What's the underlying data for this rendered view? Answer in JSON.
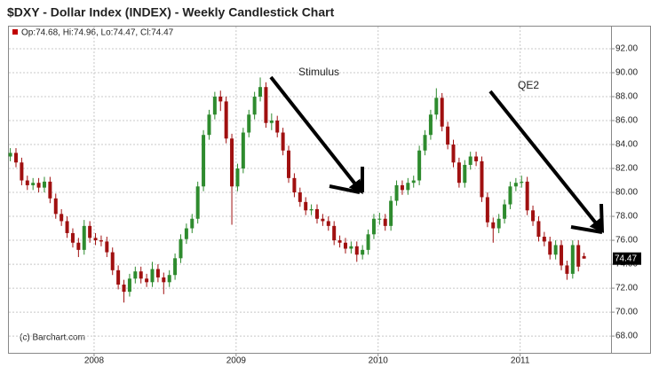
{
  "chart_data": {
    "type": "candlestick",
    "title": "$DXY - Dollar Index (INDEX) - Weekly Candlestick Chart",
    "info": "Op:74.68, Hi:74.96, Lo:74.47, Cl:74.47",
    "credit": "(c) Barchart.com",
    "annotations": [
      "Stimulus",
      "QE2"
    ],
    "up_color": "#2e8b2e",
    "down_color": "#a01010",
    "grid": true,
    "xlim": [
      2007.4,
      2011.64
    ],
    "xticks": [
      2008,
      2009,
      2010,
      2011
    ],
    "ylim": [
      66.6,
      93.85
    ],
    "yticks": [
      {
        "value": 68,
        "label": "68.00"
      },
      {
        "value": 70,
        "label": "70.00"
      },
      {
        "value": 72,
        "label": "72.00"
      },
      {
        "value": 74,
        "label": "74.00"
      },
      {
        "value": 76,
        "label": "76.00"
      },
      {
        "value": 78,
        "label": "78.00"
      },
      {
        "value": 80,
        "label": "80.00"
      },
      {
        "value": 82,
        "label": "82.00"
      },
      {
        "value": 84,
        "label": "84.00"
      },
      {
        "value": 86,
        "label": "86.00"
      },
      {
        "value": 88,
        "label": "88.00"
      },
      {
        "value": 90,
        "label": "90.00"
      },
      {
        "value": 92,
        "label": "92.00"
      }
    ],
    "x": [
      2007.41,
      2007.45,
      2007.49,
      2007.53,
      2007.57,
      2007.61,
      2007.65,
      2007.69,
      2007.73,
      2007.77,
      2007.81,
      2007.85,
      2007.89,
      2007.93,
      2007.97,
      2008.01,
      2008.05,
      2008.09,
      2008.13,
      2008.17,
      2008.21,
      2008.25,
      2008.29,
      2008.33,
      2008.37,
      2008.41,
      2008.45,
      2008.49,
      2008.53,
      2008.57,
      2008.61,
      2008.65,
      2008.69,
      2008.73,
      2008.77,
      2008.81,
      2008.85,
      2008.89,
      2008.93,
      2008.97,
      2009.01,
      2009.05,
      2009.09,
      2009.13,
      2009.17,
      2009.21,
      2009.25,
      2009.29,
      2009.33,
      2009.37,
      2009.41,
      2009.45,
      2009.49,
      2009.53,
      2009.57,
      2009.61,
      2009.65,
      2009.69,
      2009.73,
      2009.77,
      2009.81,
      2009.85,
      2009.89,
      2009.93,
      2009.97,
      2010.01,
      2010.05,
      2010.09,
      2010.13,
      2010.17,
      2010.21,
      2010.25,
      2010.29,
      2010.33,
      2010.37,
      2010.41,
      2010.45,
      2010.49,
      2010.53,
      2010.57,
      2010.61,
      2010.65,
      2010.69,
      2010.73,
      2010.77,
      2010.81,
      2010.85,
      2010.89,
      2010.93,
      2010.97,
      2011.01,
      2011.05,
      2011.09,
      2011.13,
      2011.17,
      2011.21,
      2011.25,
      2011.29,
      2011.33,
      2011.37,
      2011.41,
      2011.45
    ],
    "open": [
      83.0,
      83.3,
      82.5,
      81.0,
      80.6,
      80.8,
      80.4,
      80.9,
      79.5,
      78.2,
      77.6,
      76.6,
      75.8,
      75.2,
      77.2,
      76.2,
      76.0,
      75.9,
      75.0,
      73.5,
      72.3,
      71.7,
      72.8,
      73.4,
      72.8,
      72.5,
      73.6,
      72.9,
      72.5,
      73.1,
      74.5,
      76.1,
      77.0,
      77.8,
      80.5,
      84.8,
      86.5,
      88.0,
      87.6,
      84.5,
      80.5,
      82.0,
      85.0,
      86.5,
      88.0,
      88.8,
      85.8,
      86.0,
      85.0,
      83.5,
      81.2,
      80.0,
      79.2,
      78.5,
      78.6,
      77.8,
      77.6,
      77.2,
      76.0,
      75.8,
      75.3,
      75.5,
      74.8,
      75.2,
      76.5,
      77.8,
      77.8,
      77.2,
      79.3,
      80.6,
      80.2,
      80.8,
      81.0,
      83.5,
      84.8,
      86.5,
      87.9,
      85.5,
      84.0,
      82.5,
      80.8,
      82.3,
      83.0,
      82.6,
      79.6,
      77.5,
      77.0,
      77.8,
      79.0,
      80.5,
      80.8,
      80.9,
      78.5,
      77.6,
      76.3,
      75.9,
      74.8,
      75.6,
      73.9,
      73.2,
      75.6,
      74.68
    ],
    "high": [
      83.7,
      83.7,
      82.9,
      81.4,
      81.2,
      81.2,
      81.3,
      81.3,
      79.9,
      78.6,
      78.0,
      77.0,
      76.2,
      77.7,
      77.6,
      76.6,
      76.4,
      76.3,
      75.4,
      73.9,
      72.7,
      73.2,
      73.8,
      73.8,
      73.2,
      74.2,
      74.0,
      73.3,
      73.5,
      74.9,
      76.5,
      77.4,
      78.2,
      80.9,
      85.2,
      86.9,
      88.4,
      88.5,
      88.0,
      84.9,
      82.4,
      85.4,
      86.9,
      88.4,
      89.6,
      89.2,
      86.6,
      86.4,
      85.4,
      83.9,
      81.6,
      80.4,
      79.6,
      79.0,
      79.0,
      78.2,
      78.0,
      77.6,
      76.4,
      76.2,
      75.9,
      75.9,
      75.6,
      76.9,
      78.2,
      78.3,
      78.2,
      79.7,
      81.0,
      81.0,
      81.2,
      81.4,
      83.9,
      85.2,
      86.9,
      88.7,
      88.3,
      85.9,
      84.4,
      82.9,
      82.7,
      83.4,
      83.4,
      83.0,
      80.0,
      77.9,
      78.2,
      79.4,
      80.9,
      81.2,
      81.4,
      81.3,
      78.9,
      78.0,
      76.7,
      76.3,
      76.0,
      76.0,
      74.3,
      76.0,
      76.0,
      74.96
    ],
    "low": [
      82.6,
      82.1,
      80.6,
      80.2,
      80.2,
      80.0,
      80.0,
      79.1,
      77.8,
      77.2,
      76.2,
      75.4,
      74.6,
      74.8,
      75.8,
      75.6,
      75.5,
      74.6,
      73.1,
      71.9,
      70.8,
      71.3,
      72.4,
      72.4,
      72.1,
      72.1,
      72.5,
      71.5,
      72.1,
      72.7,
      74.1,
      75.7,
      76.6,
      77.4,
      80.1,
      84.4,
      86.1,
      86.8,
      84.1,
      77.3,
      80.1,
      81.6,
      84.6,
      86.1,
      87.6,
      85.4,
      85.2,
      84.6,
      83.1,
      80.8,
      79.6,
      78.8,
      78.1,
      78.1,
      77.4,
      77.2,
      76.8,
      75.6,
      75.4,
      74.9,
      74.9,
      74.2,
      74.4,
      74.8,
      76.1,
      77.3,
      76.8,
      76.8,
      78.9,
      79.8,
      79.8,
      80.4,
      80.6,
      83.1,
      84.4,
      86.1,
      85.1,
      83.6,
      82.1,
      80.4,
      80.4,
      81.9,
      82.2,
      79.2,
      77.1,
      75.8,
      76.6,
      77.4,
      78.6,
      80.1,
      80.4,
      78.1,
      77.2,
      75.9,
      75.5,
      74.4,
      74.4,
      73.5,
      72.7,
      72.8,
      73.4,
      74.47
    ],
    "close": [
      83.3,
      82.5,
      81.0,
      80.6,
      80.8,
      80.4,
      80.9,
      79.5,
      78.2,
      77.6,
      76.6,
      75.8,
      75.2,
      77.2,
      76.2,
      76.0,
      75.9,
      75.0,
      73.5,
      72.3,
      71.7,
      72.8,
      73.4,
      72.8,
      72.5,
      73.6,
      72.9,
      72.5,
      73.1,
      74.5,
      76.1,
      77.0,
      77.8,
      80.5,
      84.8,
      86.5,
      88.0,
      87.6,
      84.5,
      80.5,
      82.0,
      85.0,
      86.5,
      88.0,
      88.8,
      85.8,
      86.0,
      85.0,
      83.5,
      81.2,
      80.0,
      79.2,
      78.5,
      78.6,
      77.8,
      77.6,
      77.2,
      76.0,
      75.8,
      75.3,
      75.5,
      74.8,
      75.2,
      76.5,
      77.8,
      77.8,
      77.2,
      79.3,
      80.6,
      80.2,
      80.8,
      81.0,
      83.5,
      84.8,
      86.5,
      87.9,
      85.5,
      84.0,
      82.5,
      80.8,
      82.3,
      83.0,
      82.6,
      79.6,
      77.5,
      77.0,
      77.8,
      79.0,
      80.5,
      80.8,
      80.9,
      78.5,
      77.6,
      76.3,
      75.9,
      74.8,
      75.6,
      73.9,
      73.2,
      75.6,
      73.8,
      74.47
    ]
  }
}
